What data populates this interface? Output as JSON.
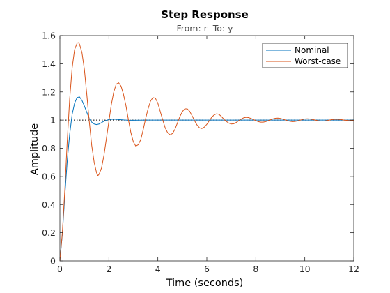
{
  "chart_data": {
    "type": "line",
    "title": "Step Response",
    "subtitle": "From: r  To: y",
    "xlabel": "Time (seconds)",
    "ylabel": "Amplitude",
    "xlim": [
      0,
      12
    ],
    "ylim": [
      0,
      1.6
    ],
    "xticks": [
      0,
      2,
      4,
      6,
      8,
      10,
      12
    ],
    "yticks": [
      0,
      0.2,
      0.4,
      0.6,
      0.8,
      1,
      1.2,
      1.4,
      1.6
    ],
    "xtick_labels": [
      "0",
      "2",
      "4",
      "6",
      "8",
      "10",
      "12"
    ],
    "ytick_labels": [
      "0",
      "0.2",
      "0.4",
      "0.6",
      "0.8",
      "1",
      "1.2",
      "1.4",
      "1.6"
    ],
    "grid": false,
    "legend_position": "top-right",
    "reference_line": {
      "y": 1,
      "style": "dotted"
    },
    "series": [
      {
        "name": "Nominal",
        "color": "#0072bd",
        "x": [
          0,
          0.1,
          0.2,
          0.3,
          0.4,
          0.5,
          0.6,
          0.7,
          0.8,
          0.9,
          1.0,
          1.1,
          1.2,
          1.3,
          1.4,
          1.5,
          1.6,
          1.7,
          1.8,
          2.0,
          2.2,
          2.4,
          2.6,
          2.8,
          3.0,
          3.5,
          4.0,
          5.0,
          6.0,
          8.0,
          10.0,
          12.0
        ],
        "y": [
          0,
          0.19,
          0.46,
          0.71,
          0.9,
          1.04,
          1.12,
          1.16,
          1.165,
          1.14,
          1.1,
          1.055,
          1.01,
          0.985,
          0.972,
          0.968,
          0.972,
          0.982,
          0.992,
          1.004,
          1.006,
          1.004,
          1.001,
          0.999,
          0.999,
          1.0,
          1.0,
          1.0,
          1.0,
          1.0,
          1.0,
          1.0
        ]
      },
      {
        "name": "Worst-case",
        "color": "#d95319",
        "x": [
          0,
          0.1,
          0.2,
          0.3,
          0.4,
          0.5,
          0.6,
          0.7,
          0.75,
          0.8,
          0.9,
          1.0,
          1.1,
          1.2,
          1.3,
          1.4,
          1.5,
          1.55,
          1.6,
          1.7,
          1.8,
          1.9,
          2.0,
          2.1,
          2.2,
          2.3,
          2.4,
          2.5,
          2.6,
          2.7,
          2.8,
          2.9,
          3.0,
          3.1,
          3.2,
          3.3,
          3.4,
          3.5,
          3.6,
          3.7,
          3.8,
          3.9,
          4.0,
          4.1,
          4.2,
          4.3,
          4.4,
          4.5,
          4.6,
          4.7,
          4.8,
          4.9,
          5.0,
          5.1,
          5.2,
          5.3,
          5.4,
          5.5,
          5.6,
          5.7,
          5.8,
          5.9,
          6.0,
          6.1,
          6.2,
          6.3,
          6.4,
          6.5,
          6.6,
          6.7,
          6.8,
          6.9,
          7.0,
          7.1,
          7.2,
          7.3,
          7.4,
          7.5,
          7.6,
          7.7,
          7.8,
          7.9,
          8.0,
          8.1,
          8.2,
          8.3,
          8.4,
          8.5,
          8.6,
          8.7,
          8.8,
          8.9,
          9.0,
          9.1,
          9.2,
          9.3,
          9.4,
          9.5,
          9.6,
          9.7,
          9.8,
          9.9,
          10.0,
          10.1,
          10.2,
          10.3,
          10.4,
          10.5,
          10.6,
          10.7,
          10.8,
          10.9,
          11.0,
          11.1,
          11.2,
          11.3,
          11.4,
          11.5,
          11.6,
          11.7,
          11.8,
          11.9,
          12.0
        ],
        "y": [
          0,
          0.2,
          0.5,
          0.85,
          1.15,
          1.37,
          1.5,
          1.545,
          1.55,
          1.54,
          1.48,
          1.36,
          1.18,
          0.99,
          0.82,
          0.7,
          0.625,
          0.605,
          0.615,
          0.66,
          0.75,
          0.87,
          0.99,
          1.11,
          1.2,
          1.255,
          1.265,
          1.24,
          1.18,
          1.1,
          1.0,
          0.91,
          0.845,
          0.815,
          0.825,
          0.86,
          0.93,
          1.01,
          1.08,
          1.135,
          1.16,
          1.155,
          1.12,
          1.06,
          1.0,
          0.945,
          0.91,
          0.895,
          0.905,
          0.935,
          0.98,
          1.025,
          1.06,
          1.08,
          1.08,
          1.062,
          1.03,
          0.995,
          0.965,
          0.945,
          0.94,
          0.95,
          0.97,
          0.995,
          1.02,
          1.037,
          1.045,
          1.04,
          1.025,
          1.005,
          0.99,
          0.978,
          0.972,
          0.974,
          0.983,
          0.995,
          1.007,
          1.016,
          1.02,
          1.018,
          1.012,
          1.004,
          0.996,
          0.989,
          0.985,
          0.985,
          0.989,
          0.995,
          1.002,
          1.009,
          1.013,
          1.014,
          1.012,
          1.007,
          1.001,
          0.995,
          0.991,
          0.989,
          0.99,
          0.994,
          0.999,
          1.004,
          1.008,
          1.009,
          1.008,
          1.005,
          1.001,
          0.997,
          0.994,
          0.993,
          0.994,
          0.996,
          1.0,
          1.003,
          1.005,
          1.006,
          1.005,
          1.003,
          1.0,
          0.998,
          0.996,
          0.996,
          0.997
        ]
      }
    ]
  }
}
